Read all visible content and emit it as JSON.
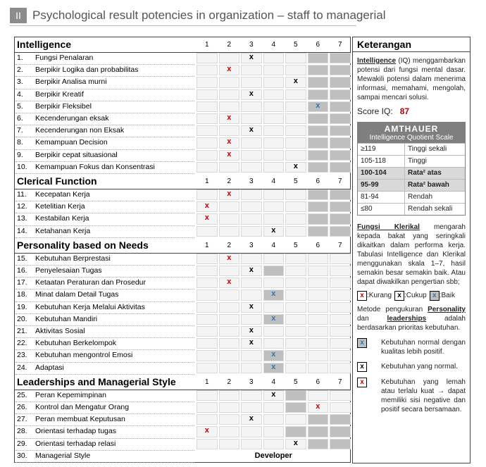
{
  "header": {
    "badge": "II",
    "title": "Psychological result potencies in organization – staff to managerial"
  },
  "table": {
    "scale": [
      1,
      2,
      3,
      4,
      5,
      6,
      7
    ],
    "sections": [
      {
        "title": "Intelligence",
        "rows": [
          {
            "no": "1.",
            "label": "Fungsi Penalaran",
            "mark": "x",
            "col": 3,
            "color": "#000000",
            "shaded": [
              6,
              7
            ]
          },
          {
            "no": "2.",
            "label": "Berpikir Logika dan probabilitas",
            "mark": "x",
            "col": 2,
            "color": "#c00000",
            "shaded": [
              6,
              7
            ]
          },
          {
            "no": "3.",
            "label": "Berpikir Analisa murni",
            "mark": "x",
            "col": 5,
            "color": "#000000",
            "shaded": [
              6,
              7
            ]
          },
          {
            "no": "4.",
            "label": "Berpikir Kreatif",
            "mark": "x",
            "col": 3,
            "color": "#000000",
            "shaded": [
              6,
              7
            ]
          },
          {
            "no": "5.",
            "label": "Berpikir Fleksibel",
            "mark": "x",
            "col": 6,
            "color": "#2e75b6",
            "shaded": [
              6,
              7
            ]
          },
          {
            "no": "6.",
            "label": "Kecenderungan eksak",
            "mark": "x",
            "col": 2,
            "color": "#c00000",
            "shaded": [
              6,
              7
            ]
          },
          {
            "no": "7.",
            "label": "Kecenderungan non Eksak",
            "mark": "x",
            "col": 3,
            "color": "#000000",
            "shaded": [
              6,
              7
            ]
          },
          {
            "no": "8.",
            "label": "Kemampuan Decision",
            "mark": "x",
            "col": 2,
            "color": "#c00000",
            "shaded": [
              6,
              7
            ]
          },
          {
            "no": "9.",
            "label": "Berpikir cepat situasional",
            "mark": "x",
            "col": 2,
            "color": "#c00000",
            "shaded": [
              6,
              7
            ]
          },
          {
            "no": "10.",
            "label": "Kemampuan Fokus dan Konsentrasi",
            "mark": "x",
            "col": 5,
            "color": "#000000",
            "shaded": [
              6,
              7
            ]
          }
        ]
      },
      {
        "title": "Clerical Function",
        "rows": [
          {
            "no": "11.",
            "label": "Kecepatan Kerja",
            "mark": "x",
            "col": 2,
            "color": "#c00000",
            "shaded": [
              6,
              7
            ]
          },
          {
            "no": "12.",
            "label": "Ketelitian Kerja",
            "mark": "x",
            "col": 1,
            "color": "#c00000",
            "shaded": [
              6,
              7
            ]
          },
          {
            "no": "13.",
            "label": "Kestabilan Kerja",
            "mark": "x",
            "col": 1,
            "color": "#c00000",
            "shaded": [
              6,
              7
            ]
          },
          {
            "no": "14.",
            "label": "Ketahanan Kerja",
            "mark": "x",
            "col": 4,
            "color": "#000000",
            "shaded": [
              6,
              7
            ]
          }
        ]
      },
      {
        "title": "Personality based on Needs",
        "rows": [
          {
            "no": "15.",
            "label": "Kebutuhan Berprestasi",
            "mark": "x",
            "col": 2,
            "color": "#c00000",
            "shaded": []
          },
          {
            "no": "16.",
            "label": "Penyelesaian Tugas",
            "mark": "x",
            "col": 3,
            "color": "#000000",
            "shaded": [
              4
            ]
          },
          {
            "no": "17.",
            "label": "Ketaatan Peraturan dan Prosedur",
            "mark": "x",
            "col": 2,
            "color": "#c00000",
            "shaded": []
          },
          {
            "no": "18.",
            "label": "Minat dalam Detail Tugas",
            "mark": "x",
            "col": 4,
            "color": "#2e75b6",
            "shaded": [
              4
            ]
          },
          {
            "no": "19.",
            "label": "Kebutuhan Kerja Melalui Aktivitas",
            "mark": "x",
            "col": 3,
            "color": "#000000",
            "shaded": []
          },
          {
            "no": "20.",
            "label": "Kebutuhan Mandiri",
            "mark": "x",
            "col": 4,
            "color": "#2e75b6",
            "shaded": [
              4
            ]
          },
          {
            "no": "21.",
            "label": "Aktivitas Sosial",
            "mark": "x",
            "col": 3,
            "color": "#000000",
            "shaded": []
          },
          {
            "no": "22.",
            "label": "Kebutuhan Berkelompok",
            "mark": "x",
            "col": 3,
            "color": "#000000",
            "shaded": []
          },
          {
            "no": "23.",
            "label": "Kebutuhan mengontrol Emosi",
            "mark": "x",
            "col": 4,
            "color": "#2e75b6",
            "shaded": [
              4
            ]
          },
          {
            "no": "24.",
            "label": "Adaptasi",
            "mark": "x",
            "col": 4,
            "color": "#2e75b6",
            "shaded": [
              4
            ]
          }
        ]
      },
      {
        "title": "Leaderships and Managerial Style",
        "rows": [
          {
            "no": "25.",
            "label": "Peran Kepemimpinan",
            "mark": "x",
            "col": 4,
            "color": "#000000",
            "shaded": [
              5
            ]
          },
          {
            "no": "26.",
            "label": "Kontrol dan Mengatur Orang",
            "mark": "x",
            "col": 6,
            "color": "#c00000",
            "shaded": [
              5
            ]
          },
          {
            "no": "27.",
            "label": "Peran membuat Keputusan",
            "mark": "x",
            "col": 3,
            "color": "#000000",
            "shaded": [
              6,
              7
            ]
          },
          {
            "no": "28.",
            "label": "Orientasi terhadap tugas",
            "mark": "x",
            "col": 1,
            "color": "#c00000",
            "shaded": [
              5,
              6,
              7
            ]
          },
          {
            "no": "29.",
            "label": "Orientasi terhadap relasi",
            "mark": "x",
            "col": 5,
            "color": "#000000",
            "shaded": [
              6,
              7
            ]
          },
          {
            "no": "30.",
            "label": "Managerial Style",
            "result": "Developer"
          }
        ]
      }
    ]
  },
  "notes": {
    "title": "Keterangan",
    "iq": {
      "term": "Intelligence",
      "text": " (IQ) menggambarkan potensi dari fungsi mental dasar. Mewakili potensi dalam menerima informasi, memahami, mengolah, sampai mencari solusi.",
      "score_label": "Score IQ:",
      "score": 87
    },
    "amthauer": {
      "title": "AMTHAUER",
      "subtitle": "Intelligence Quotient Scale",
      "rows": [
        {
          "range": "≥119",
          "label": "Tinggi sekali",
          "highlight": false
        },
        {
          "range": "105-118",
          "label": "Tinggi",
          "highlight": false
        },
        {
          "range": "100-104",
          "label": "Rata² atas",
          "highlight": true
        },
        {
          "range": "95-99",
          "label": "Rata² bawah",
          "highlight": true
        },
        {
          "range": "81-94",
          "label": "Rendah",
          "highlight": false
        },
        {
          "range": "≤80",
          "label": "Rendah sekali",
          "highlight": false
        }
      ]
    },
    "clerical": {
      "term": "Fungsi Klerikal",
      "text": " mengarah kepada bakat yang seringkali dikaitkan dalam performa kerja. Tabulasi Intelligence dan Klerikal menggunakan skala 1–7, hasil semakin besar semakin baik. Atau dapat diwakilkan pengertian sbb;"
    },
    "scale_legend": [
      {
        "mark": "x",
        "color": "#c00000",
        "shaded": false,
        "label": ":Kurang"
      },
      {
        "mark": "x",
        "color": "#000000",
        "shaded": false,
        "label": ":Cukup"
      },
      {
        "mark": "x",
        "color": "#2e75b6",
        "shaded": true,
        "label": ":Baik"
      }
    ],
    "method": [
      "Metode pengukuran ",
      "Personality",
      " dan ",
      "leaderships",
      " adalah berdasarkan prioritas kebutuhan."
    ],
    "needs_legend": [
      {
        "mark": "x",
        "color": "#2e75b6",
        "shaded": true,
        "text": "Kebutuhan normal dengan kualitas lebih positif."
      },
      {
        "mark": "x",
        "color": "#000000",
        "shaded": false,
        "text": "Kebutuhan yang normal."
      },
      {
        "mark": "x",
        "color": "#c00000",
        "shaded": false,
        "text": "Kebutuhan yang lemah atau terlalu kuat → dapat memiliki sisi negative dan positif secara bersamaan."
      }
    ]
  }
}
